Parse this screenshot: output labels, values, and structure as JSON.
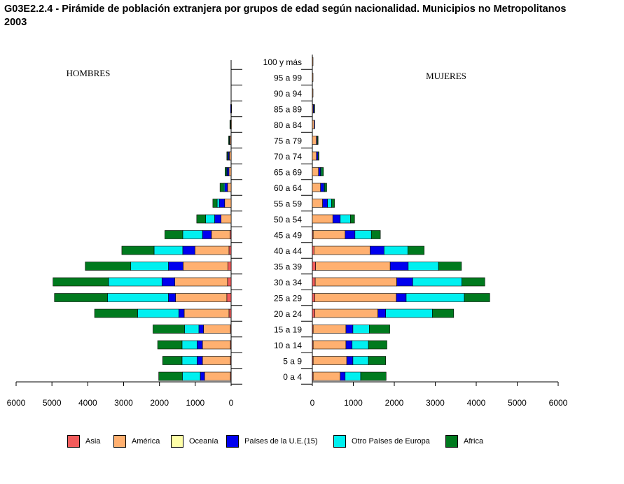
{
  "title_line1": "G03E2.2.4 - Pirámide de población extranjera por grupos de edad según nacionalidad. Municipios no  Metropolitanos",
  "title_line2": "2003",
  "colors": {
    "Asia": "#f25c5c",
    "América": "#ffb070",
    "Oceanía": "#ffffa8",
    "Países de la U.E.(15)": "#0000ee",
    "Otro Países de Europa": "#00f0f0",
    "Africa": "#007a1e"
  },
  "chart_data": [
    {
      "type": "bar",
      "orientation": "horizontal",
      "stacked": true,
      "panel": "HOMBRES",
      "title": "HOMBRES",
      "categories": [
        "100 y más",
        "95 a 99",
        "90 a 94",
        "85 a 89",
        "80 a 84",
        "75 a 79",
        "70 a 74",
        "65 a 69",
        "60 a 64",
        "55 a 59",
        "50 a 54",
        "45 a 49",
        "40 a 44",
        "35 a 39",
        "30 a 34",
        "25 a 29",
        "20 a 24",
        "15 a 19",
        "10 a 14",
        "5 a 9",
        "0 a 4"
      ],
      "xlim": [
        6000,
        0
      ],
      "xticks": [
        "6000",
        "5000",
        "4000",
        "3000",
        "2000",
        "1000",
        "0"
      ],
      "series": [
        {
          "name": "Asia",
          "values": [
            0,
            0,
            0,
            0,
            0,
            0,
            0,
            0,
            0,
            0,
            0,
            30,
            60,
            90,
            100,
            120,
            60,
            20,
            20,
            20,
            20
          ]
        },
        {
          "name": "América",
          "values": [
            0,
            0,
            0,
            5,
            10,
            30,
            50,
            60,
            100,
            180,
            280,
            520,
            950,
            1250,
            1470,
            1430,
            1250,
            750,
            780,
            780,
            720
          ]
        },
        {
          "name": "Oceanía",
          "values": [
            0,
            0,
            0,
            0,
            0,
            0,
            0,
            0,
            0,
            0,
            0,
            0,
            0,
            0,
            0,
            0,
            0,
            0,
            0,
            0,
            0
          ]
        },
        {
          "name": "Países de la U.E.(15)",
          "values": [
            0,
            0,
            0,
            10,
            20,
            20,
            30,
            50,
            80,
            150,
            180,
            250,
            340,
            410,
            360,
            200,
            150,
            130,
            150,
            150,
            120
          ]
        },
        {
          "name": "Otro Países de Europa",
          "values": [
            0,
            0,
            0,
            0,
            0,
            10,
            20,
            20,
            30,
            60,
            250,
            550,
            800,
            1050,
            1490,
            1700,
            1150,
            400,
            420,
            420,
            500
          ]
        },
        {
          "name": "Africa",
          "values": [
            0,
            0,
            0,
            0,
            5,
            10,
            20,
            40,
            100,
            120,
            250,
            500,
            900,
            1270,
            1550,
            1480,
            1200,
            880,
            680,
            540,
            660
          ]
        }
      ]
    },
    {
      "type": "bar",
      "orientation": "horizontal",
      "stacked": true,
      "panel": "MUJERES",
      "title": "MUJERES",
      "categories": [
        "100 y más",
        "95 a 99",
        "90 a 94",
        "85 a 89",
        "80 a 84",
        "75 a 79",
        "70 a 74",
        "65 a 69",
        "60 a 64",
        "55 a 59",
        "50 a 54",
        "45 a 49",
        "40 a 44",
        "35 a 39",
        "30 a 34",
        "25 a 29",
        "20 a 24",
        "15 a 19",
        "10 a 14",
        "5 a 9",
        "0 a 4"
      ],
      "xlim": [
        0,
        6000
      ],
      "xticks": [
        "0",
        "1000",
        "2000",
        "3000",
        "4000",
        "5000",
        "6000"
      ],
      "series": [
        {
          "name": "Asia",
          "values": [
            0,
            0,
            0,
            0,
            0,
            0,
            0,
            0,
            0,
            0,
            0,
            20,
            40,
            80,
            70,
            60,
            60,
            20,
            20,
            20,
            20
          ]
        },
        {
          "name": "América",
          "values": [
            5,
            5,
            5,
            20,
            40,
            100,
            100,
            150,
            200,
            250,
            500,
            780,
            1370,
            1820,
            1990,
            1990,
            1540,
            800,
            800,
            820,
            660
          ]
        },
        {
          "name": "Oceanía",
          "values": [
            0,
            0,
            0,
            0,
            0,
            0,
            0,
            0,
            0,
            0,
            0,
            0,
            0,
            0,
            0,
            0,
            0,
            0,
            0,
            0,
            0
          ]
        },
        {
          "name": "Países de la U.E.(15)",
          "values": [
            0,
            0,
            0,
            20,
            10,
            20,
            40,
            50,
            80,
            120,
            180,
            240,
            340,
            440,
            390,
            240,
            190,
            170,
            150,
            150,
            120
          ]
        },
        {
          "name": "Otro Países de Europa",
          "values": [
            0,
            0,
            0,
            0,
            0,
            0,
            0,
            20,
            20,
            100,
            250,
            400,
            580,
            740,
            1200,
            1420,
            1140,
            400,
            400,
            380,
            380
          ]
        },
        {
          "name": "Africa",
          "values": [
            0,
            0,
            0,
            10,
            0,
            20,
            20,
            50,
            50,
            70,
            100,
            220,
            400,
            560,
            560,
            620,
            520,
            500,
            450,
            420,
            620
          ]
        }
      ]
    }
  ],
  "legend": [
    {
      "label": "Asia",
      "color": "#f25c5c"
    },
    {
      "label": "América",
      "color": "#ffb070"
    },
    {
      "label": "Oceanía",
      "color": "#ffffa8"
    },
    {
      "label": "Países de la U.E.(15)",
      "color": "#0000ee"
    },
    {
      "label": "Otro Países de Europa",
      "color": "#00f0f0"
    },
    {
      "label": "Africa",
      "color": "#007a1e"
    }
  ]
}
